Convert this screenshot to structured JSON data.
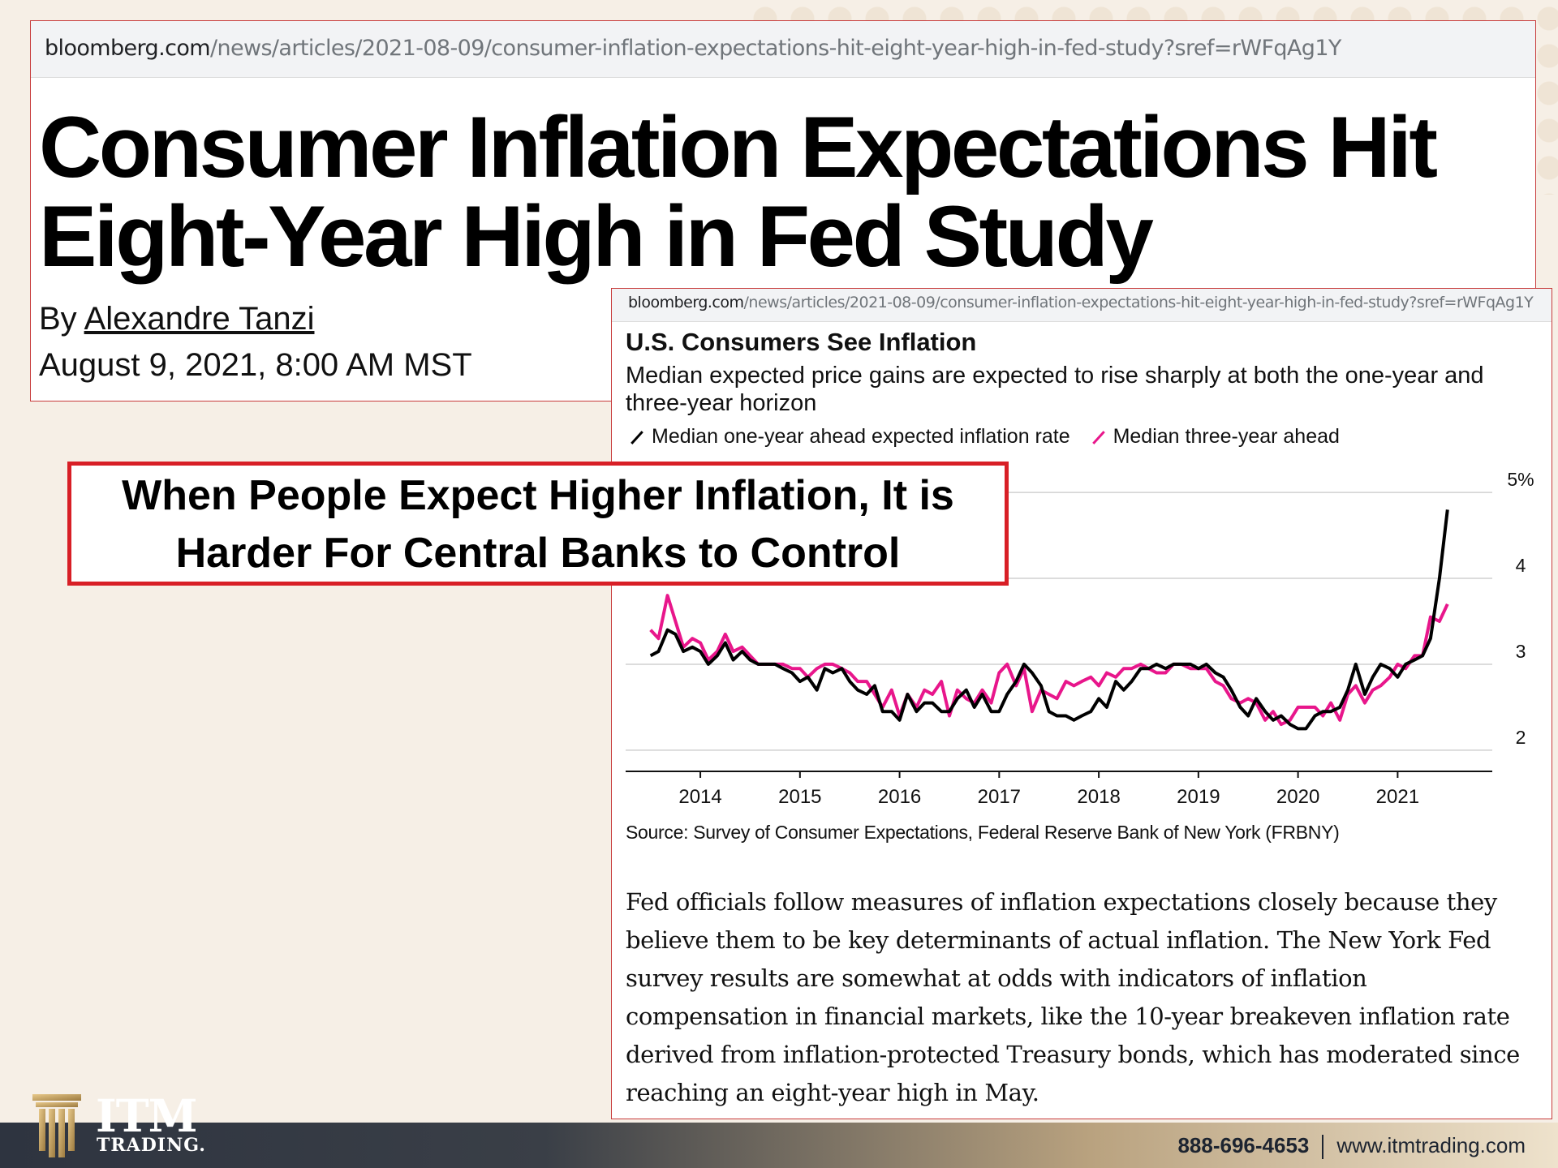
{
  "article": {
    "url_domain": "bloomberg.com",
    "url_path": "/news/articles/2021-08-09/consumer-inflation-expectations-hit-eight-year-high-in-fed-study?sref=rWFqAg1Y",
    "headline": "Consumer Inflation Expectations Hit Eight-Year High in Fed Study",
    "byline_prefix": "By ",
    "author": "Alexandre Tanzi",
    "date": "August 9, 2021, 8:00 AM MST"
  },
  "chart_article": {
    "url_domain": "bloomberg.com",
    "url_path": "/news/articles/2021-08-09/consumer-inflation-expectations-hit-eight-year-high-in-fed-study?sref=rWFqAg1Y",
    "source": "Source: Survey of Consumer Expectations, Federal Reserve Bank of New York (FRBNY)",
    "body": "Fed officials follow measures of inflation expectations closely because they believe them to be key determinants of actual inflation. The New York Fed survey results are somewhat at odds with indicators of inflation compensation in financial markets, like the 10-year breakeven inflation rate derived from inflation-protected Treasury bonds, which has moderated since reaching an eight-year high in May."
  },
  "callout": {
    "text": "When People Expect Higher Inflation, It is Harder For Central Banks to Control"
  },
  "footer": {
    "brand": "ITM",
    "brand_sub": "TRADING.",
    "phone": "888-696-4653",
    "website": "www.itmtrading.com"
  },
  "colors": {
    "one_year_series": "#000000",
    "three_year_series": "#e8168b",
    "callout_border": "#d81f26",
    "card_border": "#c73b3b"
  },
  "chart_data": {
    "type": "line",
    "title": "U.S. Consumers See Inflation",
    "subtitle": "Median expected price gains are expected to rise sharply at both the one-year and three-year horizon",
    "x_ticks": [
      "2014",
      "2015",
      "2016",
      "2017",
      "2018",
      "2019",
      "2020",
      "2021"
    ],
    "y_ticks": [
      "2",
      "3",
      "4",
      "5%"
    ],
    "ylim": [
      1.8,
      5.2
    ],
    "xlim": [
      2013.25,
      2021.95
    ],
    "grid": "horizontal",
    "legend_position": "top-left",
    "series": [
      {
        "name": "Median one-year ahead expected inflation rate",
        "x": [
          2013.5,
          2013.58,
          2013.67,
          2013.75,
          2013.83,
          2013.92,
          2014.0,
          2014.08,
          2014.17,
          2014.25,
          2014.33,
          2014.42,
          2014.5,
          2014.58,
          2014.67,
          2014.75,
          2014.83,
          2014.92,
          2015.0,
          2015.08,
          2015.17,
          2015.25,
          2015.33,
          2015.42,
          2015.5,
          2015.58,
          2015.67,
          2015.75,
          2015.83,
          2015.92,
          2016.0,
          2016.08,
          2016.17,
          2016.25,
          2016.33,
          2016.42,
          2016.5,
          2016.58,
          2016.67,
          2016.75,
          2016.83,
          2016.92,
          2017.0,
          2017.08,
          2017.17,
          2017.25,
          2017.33,
          2017.42,
          2017.5,
          2017.58,
          2017.67,
          2017.75,
          2017.83,
          2017.92,
          2018.0,
          2018.08,
          2018.17,
          2018.25,
          2018.33,
          2018.42,
          2018.5,
          2018.58,
          2018.67,
          2018.75,
          2018.83,
          2018.92,
          2019.0,
          2019.08,
          2019.17,
          2019.25,
          2019.33,
          2019.42,
          2019.5,
          2019.58,
          2019.67,
          2019.75,
          2019.83,
          2019.92,
          2020.0,
          2020.08,
          2020.17,
          2020.25,
          2020.33,
          2020.42,
          2020.5,
          2020.58,
          2020.67,
          2020.75,
          2020.83,
          2020.92,
          2021.0,
          2021.08,
          2021.17,
          2021.25,
          2021.33,
          2021.42,
          2021.5
        ],
        "values": [
          3.1,
          3.15,
          3.4,
          3.35,
          3.15,
          3.2,
          3.15,
          3.0,
          3.1,
          3.25,
          3.05,
          3.15,
          3.05,
          3.0,
          3.0,
          3.0,
          2.95,
          2.9,
          2.8,
          2.85,
          2.7,
          2.95,
          2.9,
          2.95,
          2.8,
          2.7,
          2.65,
          2.75,
          2.45,
          2.45,
          2.35,
          2.65,
          2.45,
          2.55,
          2.55,
          2.45,
          2.45,
          2.6,
          2.7,
          2.5,
          2.65,
          2.45,
          2.45,
          2.65,
          2.8,
          3.0,
          2.9,
          2.75,
          2.45,
          2.4,
          2.4,
          2.35,
          2.4,
          2.45,
          2.6,
          2.5,
          2.8,
          2.7,
          2.8,
          2.95,
          2.95,
          3.0,
          2.95,
          3.0,
          3.0,
          3.0,
          2.95,
          3.0,
          2.9,
          2.85,
          2.7,
          2.5,
          2.4,
          2.6,
          2.45,
          2.35,
          2.4,
          2.3,
          2.25,
          2.25,
          2.4,
          2.45,
          2.45,
          2.5,
          2.7,
          3.0,
          2.65,
          2.85,
          3.0,
          2.95,
          2.85,
          3.0,
          3.05,
          3.1,
          3.3,
          4.0,
          4.8
        ]
      },
      {
        "name": "Median three-year ahead",
        "x": [
          2013.5,
          2013.58,
          2013.67,
          2013.75,
          2013.83,
          2013.92,
          2014.0,
          2014.08,
          2014.17,
          2014.25,
          2014.33,
          2014.42,
          2014.5,
          2014.58,
          2014.67,
          2014.75,
          2014.83,
          2014.92,
          2015.0,
          2015.08,
          2015.17,
          2015.25,
          2015.33,
          2015.42,
          2015.5,
          2015.58,
          2015.67,
          2015.75,
          2015.83,
          2015.92,
          2016.0,
          2016.08,
          2016.17,
          2016.25,
          2016.33,
          2016.42,
          2016.5,
          2016.58,
          2016.67,
          2016.75,
          2016.83,
          2016.92,
          2017.0,
          2017.08,
          2017.17,
          2017.25,
          2017.33,
          2017.42,
          2017.5,
          2017.58,
          2017.67,
          2017.75,
          2017.83,
          2017.92,
          2018.0,
          2018.08,
          2018.17,
          2018.25,
          2018.33,
          2018.42,
          2018.5,
          2018.58,
          2018.67,
          2018.75,
          2018.83,
          2018.92,
          2019.0,
          2019.08,
          2019.17,
          2019.25,
          2019.33,
          2019.42,
          2019.5,
          2019.58,
          2019.67,
          2019.75,
          2019.83,
          2019.92,
          2020.0,
          2020.08,
          2020.17,
          2020.25,
          2020.33,
          2020.42,
          2020.5,
          2020.58,
          2020.67,
          2020.75,
          2020.83,
          2020.92,
          2021.0,
          2021.08,
          2021.17,
          2021.25,
          2021.33,
          2021.42,
          2021.5
        ],
        "values": [
          3.4,
          3.3,
          3.8,
          3.5,
          3.2,
          3.3,
          3.25,
          3.05,
          3.15,
          3.35,
          3.15,
          3.2,
          3.1,
          3.0,
          3.0,
          3.0,
          3.0,
          2.95,
          2.95,
          2.85,
          2.95,
          3.0,
          3.0,
          2.95,
          2.9,
          2.8,
          2.8,
          2.65,
          2.5,
          2.7,
          2.4,
          2.65,
          2.5,
          2.7,
          2.65,
          2.8,
          2.4,
          2.7,
          2.6,
          2.55,
          2.7,
          2.55,
          2.9,
          3.0,
          2.75,
          2.95,
          2.45,
          2.7,
          2.65,
          2.6,
          2.8,
          2.75,
          2.8,
          2.85,
          2.75,
          2.9,
          2.85,
          2.95,
          2.95,
          3.0,
          2.95,
          2.9,
          2.9,
          3.0,
          3.0,
          2.95,
          2.95,
          2.95,
          2.8,
          2.75,
          2.6,
          2.55,
          2.6,
          2.55,
          2.35,
          2.45,
          2.3,
          2.35,
          2.5,
          2.5,
          2.5,
          2.4,
          2.55,
          2.35,
          2.65,
          2.75,
          2.55,
          2.7,
          2.75,
          2.85,
          3.0,
          2.95,
          3.1,
          3.1,
          3.55,
          3.5,
          3.7
        ]
      }
    ]
  }
}
